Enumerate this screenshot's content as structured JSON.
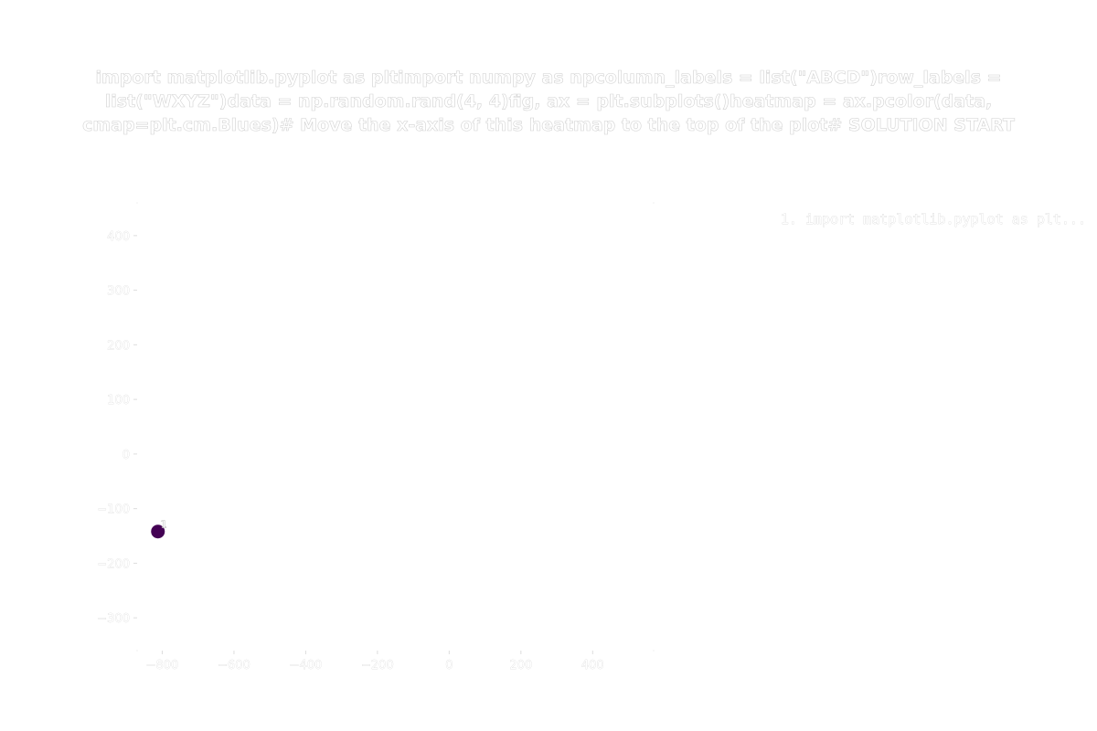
{
  "chart_data": {
    "type": "scatter",
    "title": "import matplotlib.pyplot as pltimport numpy as npcolumn_labels = list(\"ABCD\")row_labels = list(\"WXYZ\")data = np.random.rand(4, 4)fig, ax = plt.subplots()heatmap = ax.pcolor(data, cmap=plt.cm.Blues)# Move the x-axis of this heatmap to the top of the plot# SOLUTION START",
    "xlabel": "",
    "ylabel": "",
    "xlim": [
      -870,
      570
    ],
    "ylim": [
      -360,
      460
    ],
    "x_ticks": [
      -800,
      -600,
      -400,
      -200,
      0,
      200,
      400
    ],
    "x_tick_labels": [
      "−800",
      "−600",
      "−400",
      "−200",
      "0",
      "200",
      "400"
    ],
    "y_ticks": [
      400,
      300,
      200,
      100,
      0,
      -100,
      -200,
      -300
    ],
    "y_tick_labels": [
      "400",
      "300",
      "200",
      "100",
      "0",
      "−100",
      "−200",
      "−300"
    ],
    "grid": false,
    "legend_placement": "top-right",
    "legend": [
      {
        "text": "1. import matplotlib.pyplot as plt..."
      }
    ],
    "points": [
      {
        "x": -812,
        "y": -142,
        "label": "1",
        "color": "#440154"
      }
    ]
  }
}
